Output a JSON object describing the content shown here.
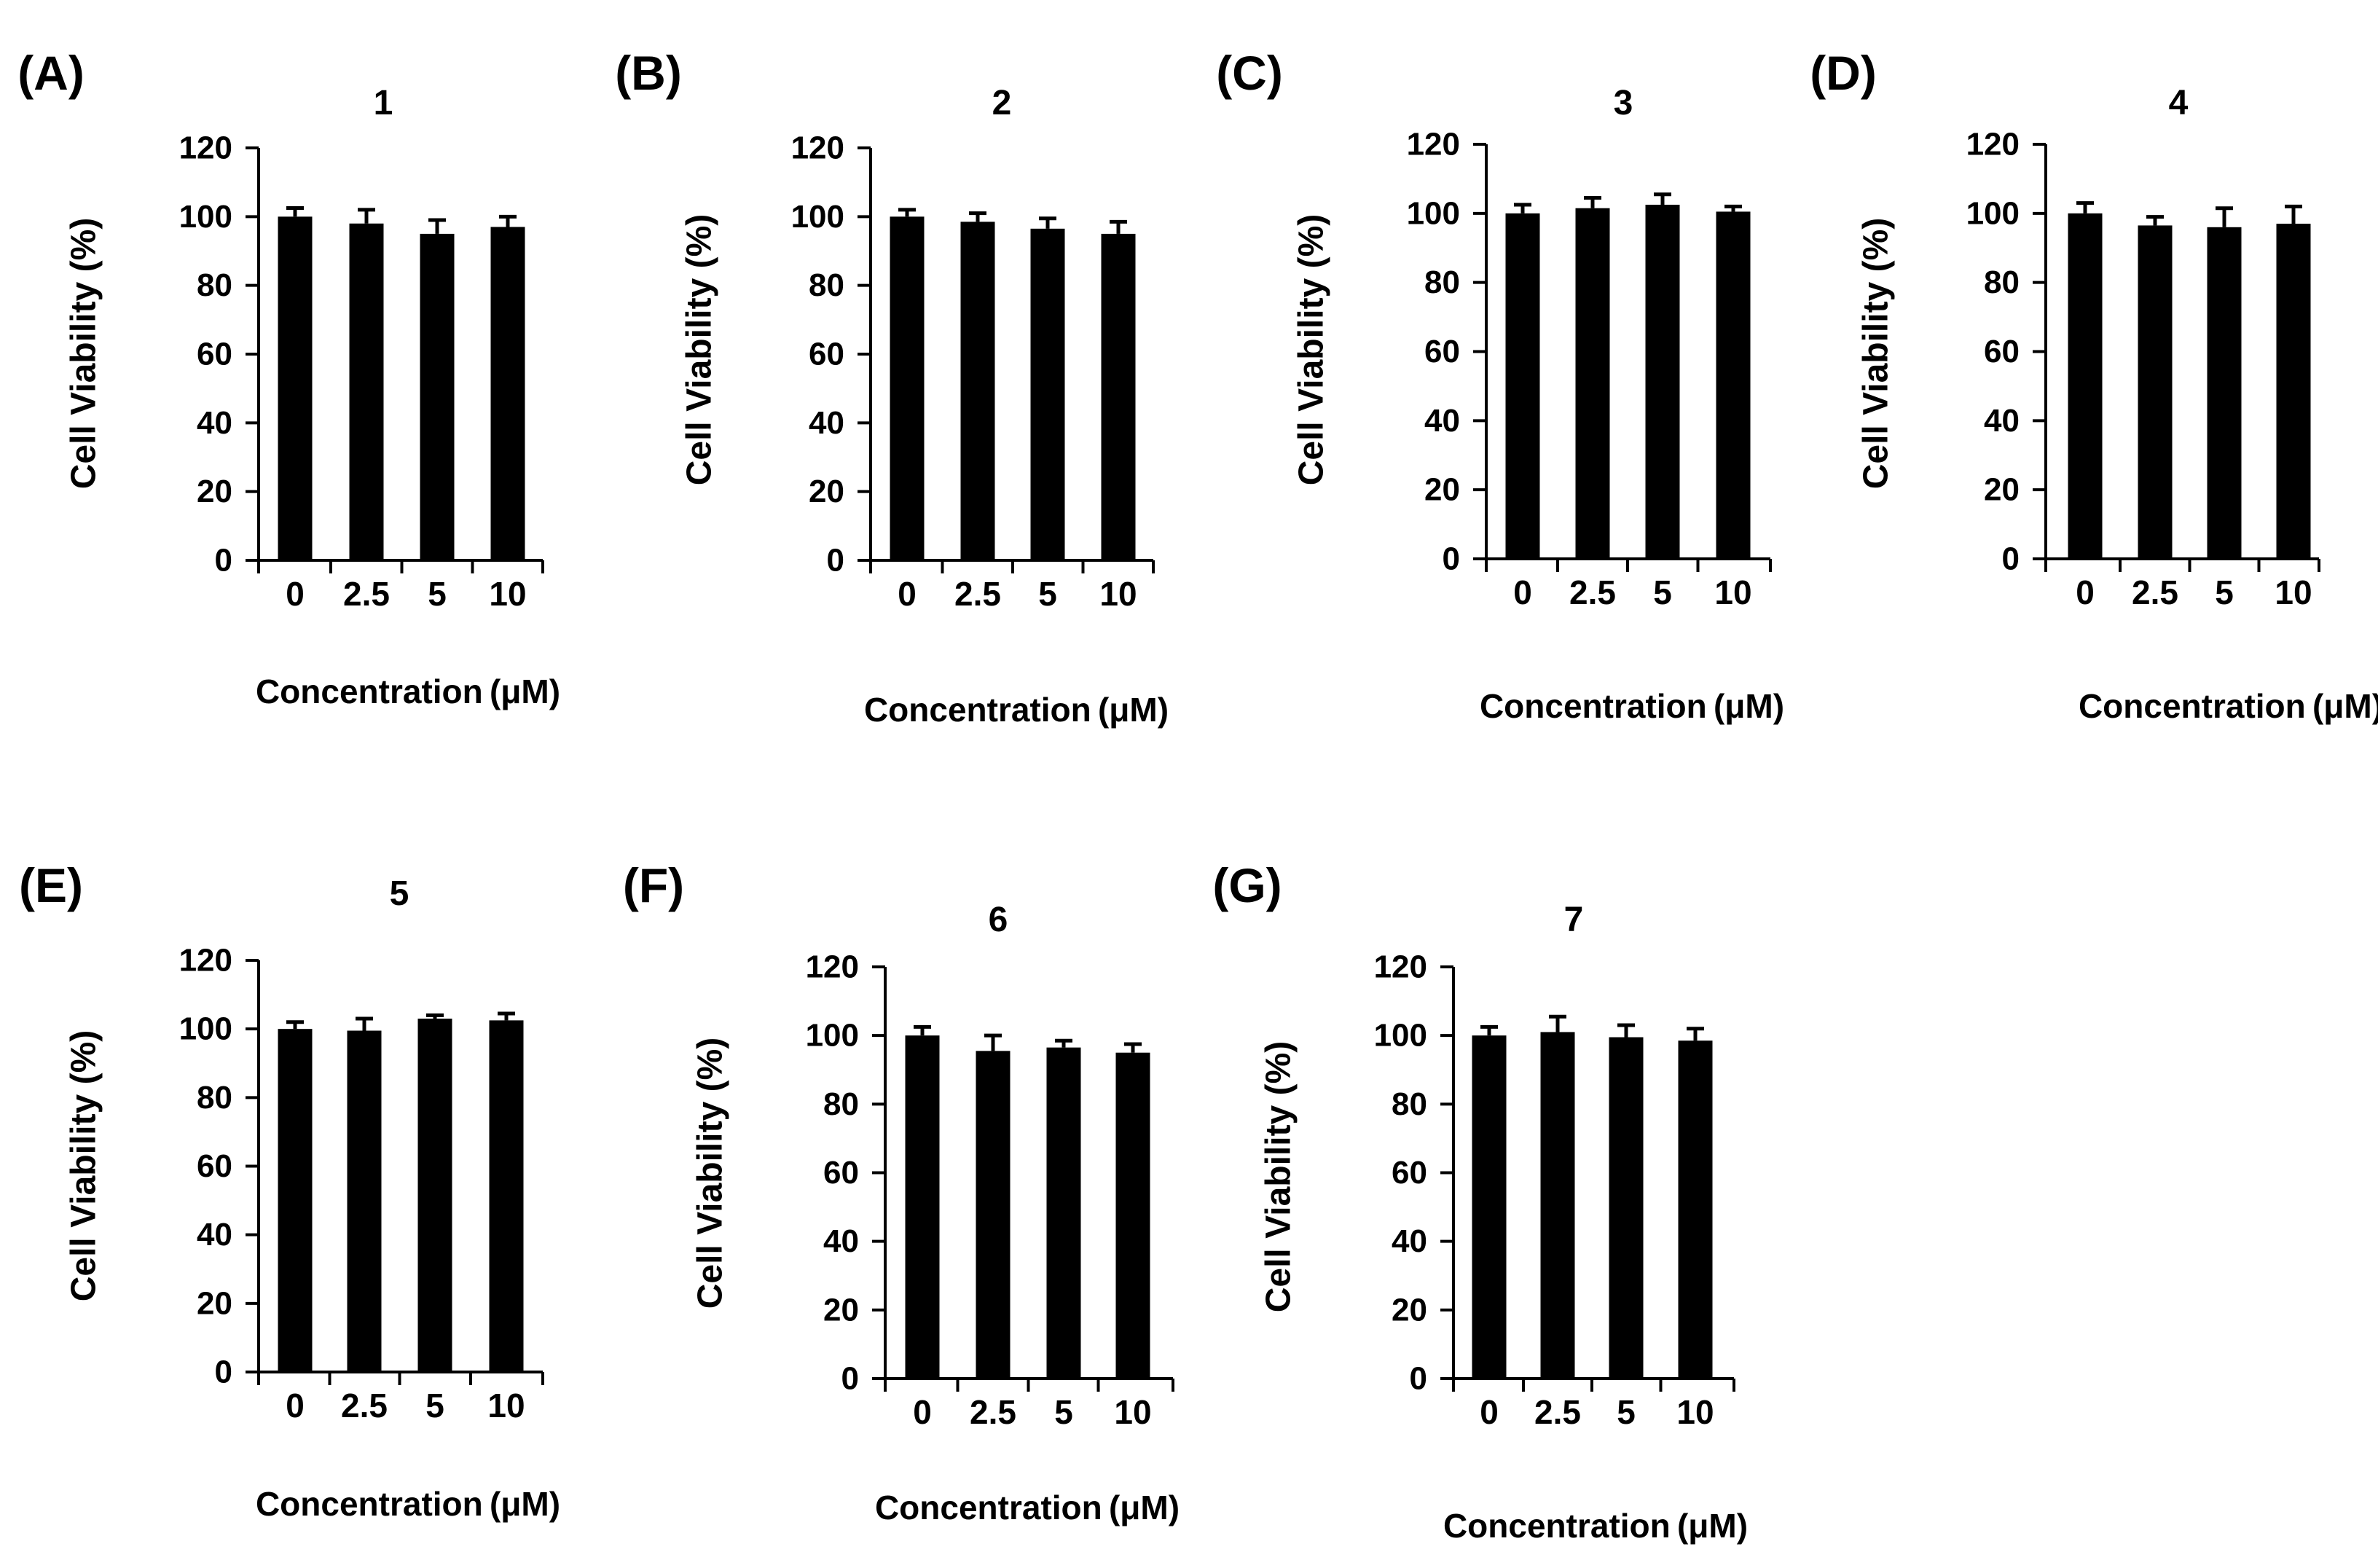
{
  "figure": {
    "description_free": true,
    "ylim": [
      0,
      120
    ],
    "yticks": [
      0,
      20,
      40,
      60,
      80,
      100,
      120
    ],
    "categories": [
      "0",
      "2.5",
      "5",
      "10"
    ],
    "xlabel": "Concentration (μM)",
    "ylabel": "Cell Viability  (%)",
    "colors": {
      "bar": "#000000",
      "axis": "#000000",
      "background": "#ffffff"
    }
  },
  "chart_data": [
    {
      "type": "bar",
      "panel_label": "(A)",
      "title": "1",
      "categories": [
        "0",
        "2.5",
        "5",
        "10"
      ],
      "values": [
        100,
        98,
        95,
        97
      ],
      "errors": [
        2.5,
        4,
        4,
        3
      ],
      "xlabel": "Concentration (μM)",
      "ylabel": "Cell Viability  (%)",
      "ylim": [
        0,
        120
      ]
    },
    {
      "type": "bar",
      "panel_label": "(B)",
      "title": "2",
      "categories": [
        "0",
        "2.5",
        "5",
        "10"
      ],
      "values": [
        100,
        98.5,
        96.5,
        95
      ],
      "errors": [
        2,
        2.5,
        3,
        3.5
      ],
      "xlabel": "Concentration (μM)",
      "ylabel": "Cell Viability  (%)",
      "ylim": [
        0,
        120
      ]
    },
    {
      "type": "bar",
      "panel_label": "(C)",
      "title": "3",
      "categories": [
        "0",
        "2.5",
        "5",
        "10"
      ],
      "values": [
        100,
        101.5,
        102.5,
        100.5
      ],
      "errors": [
        2.5,
        3,
        3,
        1.5
      ],
      "xlabel": "Concentration (μM)",
      "ylabel": "Cell Viability  (%)",
      "ylim": [
        0,
        120
      ]
    },
    {
      "type": "bar",
      "panel_label": "(D)",
      "title": "4",
      "categories": [
        "0",
        "2.5",
        "5",
        "10"
      ],
      "values": [
        100,
        96.5,
        96,
        97
      ],
      "errors": [
        3,
        2.5,
        5.5,
        5
      ],
      "xlabel": "Concentration (μM)",
      "ylabel": "Cell Viability  (%)",
      "ylim": [
        0,
        120
      ]
    },
    {
      "type": "bar",
      "panel_label": "(E)",
      "title": "5",
      "categories": [
        "0",
        "2.5",
        "5",
        "10"
      ],
      "values": [
        100,
        99.5,
        103,
        102.5
      ],
      "errors": [
        2,
        3.5,
        1,
        2
      ],
      "xlabel": "Concentration (μM)",
      "ylabel": "Cell Viability  (%)",
      "ylim": [
        0,
        120
      ]
    },
    {
      "type": "bar",
      "panel_label": "(F)",
      "title": "6",
      "categories": [
        "0",
        "2.5",
        "5",
        "10"
      ],
      "values": [
        100,
        95.5,
        96.5,
        95
      ],
      "errors": [
        2.5,
        4.5,
        2,
        2.5
      ],
      "xlabel": "Concentration (μM)",
      "ylabel": "Cell Viability  (%)",
      "ylim": [
        0,
        120
      ]
    },
    {
      "type": "bar",
      "panel_label": "(G)",
      "title": "7",
      "categories": [
        "0",
        "2.5",
        "5",
        "10"
      ],
      "values": [
        100,
        101,
        99.5,
        98.5
      ],
      "errors": [
        2.5,
        4.5,
        3.5,
        3.5
      ],
      "xlabel": "Concentration (μM)",
      "ylabel": "Cell Viability  (%)",
      "ylim": [
        0,
        120
      ]
    }
  ]
}
